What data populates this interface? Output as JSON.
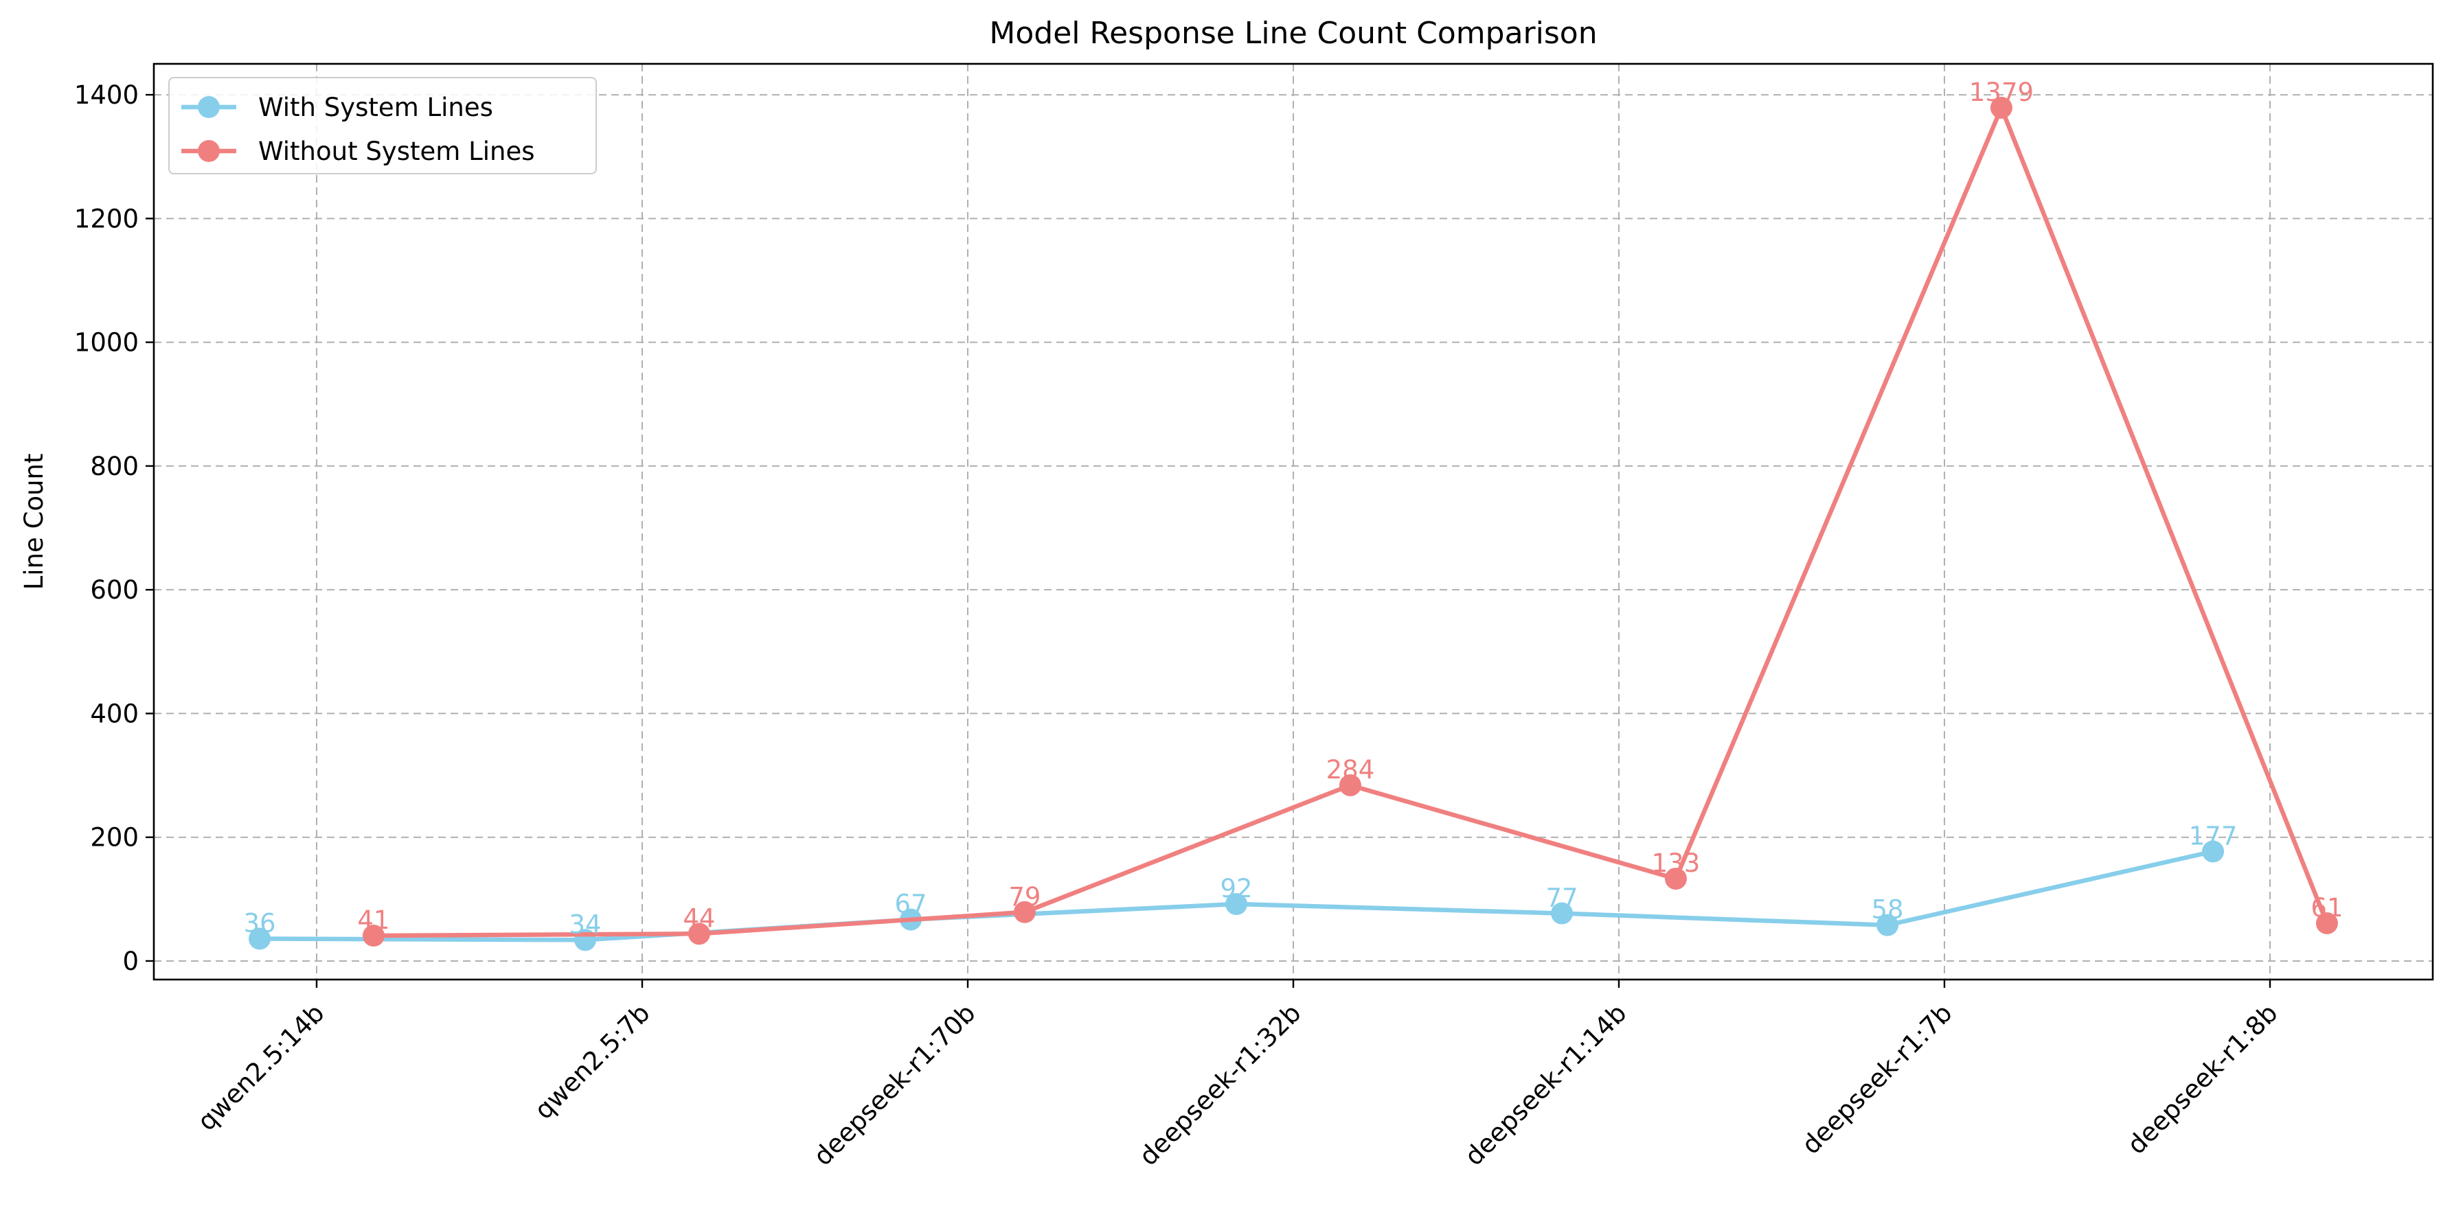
{
  "chart_data": {
    "type": "line",
    "title": "Model Response Line Count Comparison",
    "xlabel": "",
    "ylabel": "Line Count",
    "categories": [
      "qwen2.5:14b",
      "qwen2.5:7b",
      "deepseek-r1:70b",
      "deepseek-r1:32b",
      "deepseek-r1:14b",
      "deepseek-r1:7b",
      "deepseek-r1:8b"
    ],
    "series": [
      {
        "name": "With System Lines",
        "color": "#87ceeb",
        "x_offset": -0.175,
        "values": [
          36,
          34,
          67,
          92,
          77,
          58,
          177
        ]
      },
      {
        "name": "Without System Lines",
        "color": "#f08080",
        "x_offset": 0.175,
        "values": [
          41,
          44,
          79,
          284,
          133,
          1379,
          61
        ]
      }
    ],
    "ylim": [
      -30,
      1450
    ],
    "yticks": [
      0,
      200,
      400,
      600,
      800,
      1000,
      1200,
      1400
    ],
    "grid": true,
    "legend_position": "upper left"
  }
}
